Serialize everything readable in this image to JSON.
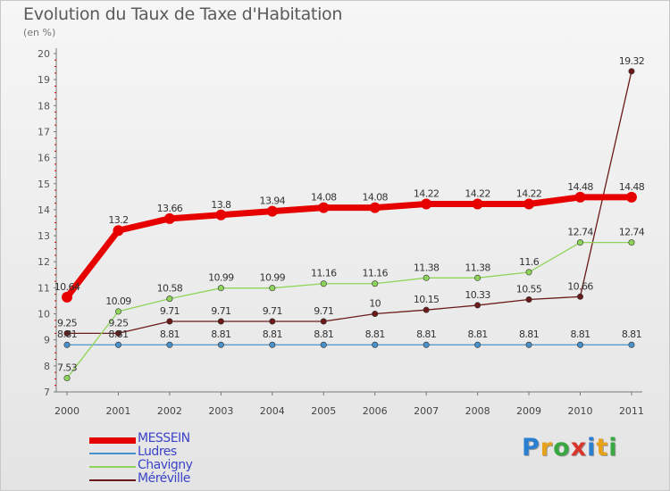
{
  "title": "Evolution du Taux de Taxe d'Habitation",
  "subtitle": "(en %)",
  "logo_text": "Proxiti",
  "chart_data": {
    "type": "line",
    "title": "Evolution du Taux de Taxe d'Habitation",
    "ylabel": "(en %)",
    "xlabel": "",
    "ylim": [
      7,
      20
    ],
    "y_ticks": [
      "7",
      "8",
      "9",
      "10",
      "11",
      "12",
      "13",
      "14",
      "15",
      "16",
      "17",
      "18",
      "19",
      "20"
    ],
    "categories": [
      "2000",
      "2001",
      "2002",
      "2003",
      "2004",
      "2005",
      "2006",
      "2007",
      "2008",
      "2009",
      "2010",
      "2011"
    ],
    "grid": false,
    "legend_position": "bottom-left",
    "series": [
      {
        "name": "MESSEIN",
        "color": "#e60000",
        "values": [
          10.64,
          13.2,
          13.66,
          13.8,
          13.94,
          14.08,
          14.08,
          14.22,
          14.22,
          14.22,
          14.48,
          14.48
        ],
        "labels": [
          "10.64",
          "13.2",
          "13.66",
          "13.8",
          "13.94",
          "14.08",
          "14.08",
          "14.22",
          "14.22",
          "14.22",
          "14.48",
          "14.48"
        ]
      },
      {
        "name": "Ludres",
        "color": "#4a90c8",
        "values": [
          8.81,
          8.81,
          8.81,
          8.81,
          8.81,
          8.81,
          8.81,
          8.81,
          8.81,
          8.81,
          8.81,
          8.81
        ],
        "labels": [
          "8.81",
          "8.81",
          "8.81",
          "8.81",
          "8.81",
          "8.81",
          "8.81",
          "8.81",
          "8.81",
          "8.81",
          "8.81",
          "8.81"
        ]
      },
      {
        "name": "Chavigny",
        "color": "#8fd45a",
        "values": [
          7.53,
          10.09,
          10.58,
          10.99,
          10.99,
          11.16,
          11.16,
          11.38,
          11.38,
          11.6,
          12.74,
          12.74
        ],
        "labels": [
          "7.53",
          "10.09",
          "10.58",
          "10.99",
          "10.99",
          "11.16",
          "11.16",
          "11.38",
          "11.38",
          "11.6",
          "12.74",
          "12.74"
        ]
      },
      {
        "name": "Méréville",
        "color": "#6b1a1a",
        "values": [
          9.25,
          9.25,
          9.71,
          9.71,
          9.71,
          9.71,
          10.0,
          10.15,
          10.33,
          10.55,
          10.66,
          19.32
        ],
        "labels": [
          "9.25",
          "9.25",
          "9.71",
          "9.71",
          "9.71",
          "9.71",
          "10",
          "10.15",
          "10.33",
          "10.55",
          "10.66",
          "19.32"
        ]
      }
    ]
  }
}
